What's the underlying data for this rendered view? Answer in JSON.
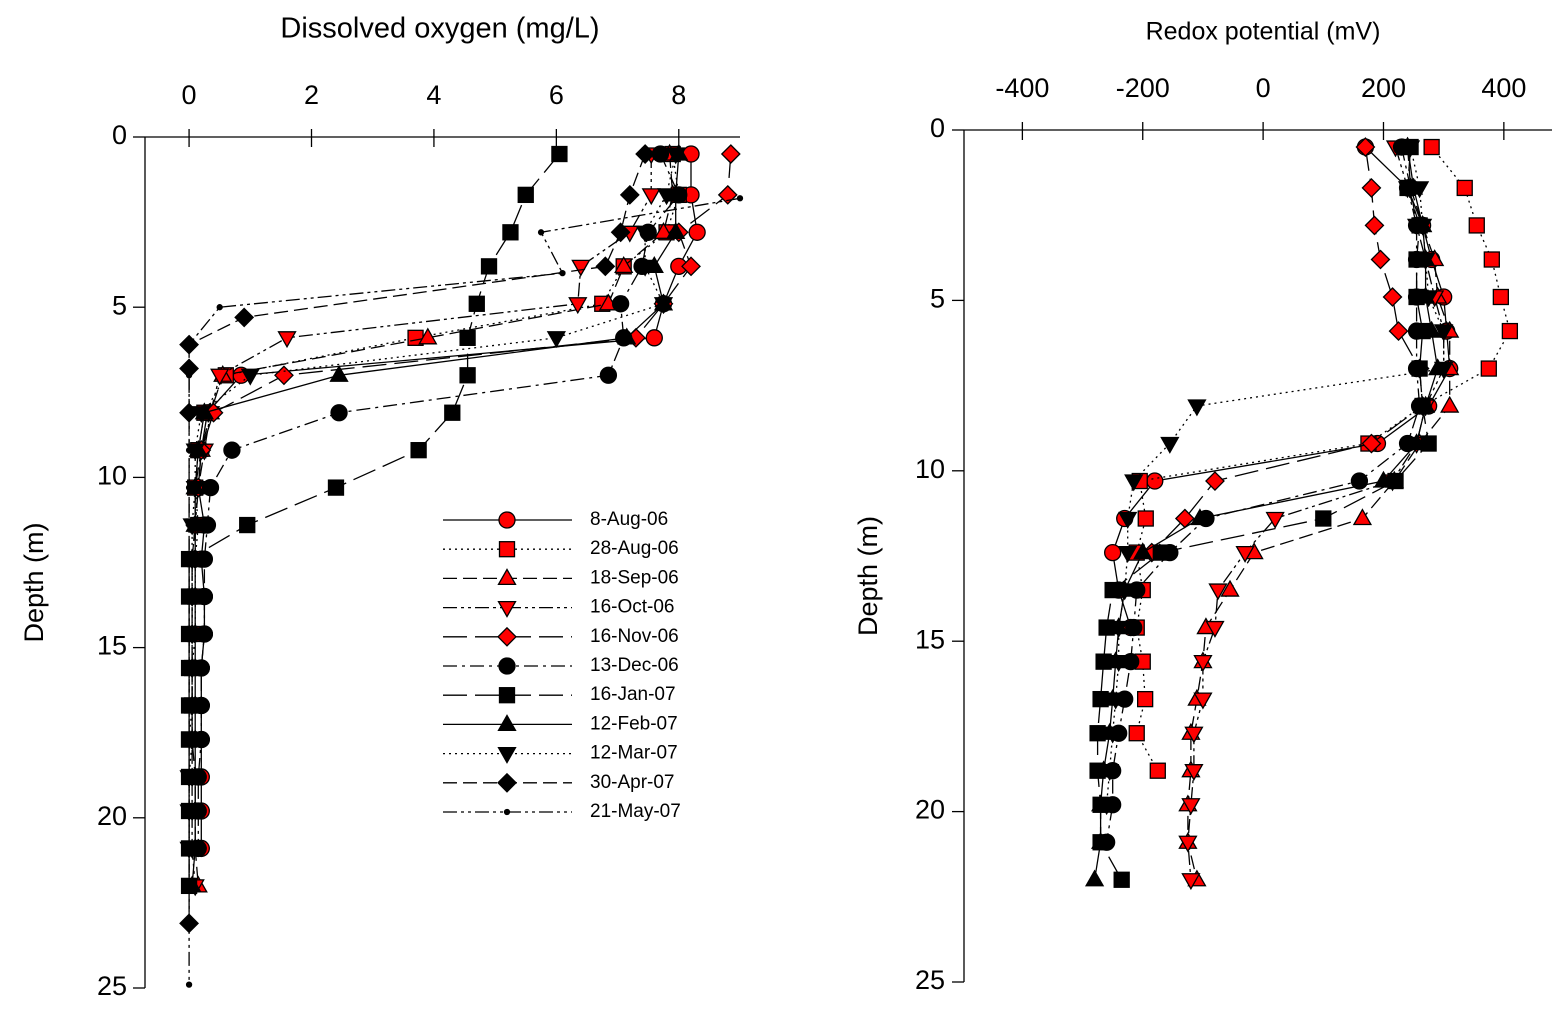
{
  "chart_data": [
    {
      "type": "line",
      "xlabel": "Dissolved oxygen (mg/L)",
      "ylabel": "Depth (m)",
      "xlim": [
        -0.72,
        9.0
      ],
      "xticks": [
        0,
        2,
        4,
        6,
        8
      ],
      "ylim": [
        0,
        25
      ],
      "yticks": [
        0,
        5,
        10,
        15,
        20,
        25
      ],
      "y_inverted": true,
      "legend": true,
      "y": [
        0.5,
        1.7,
        2.8,
        3.8,
        4.9,
        5.9,
        7.0,
        8.1,
        9.2,
        10.3,
        11.4,
        12.4,
        13.5,
        14.6,
        15.6,
        16.7,
        17.7,
        18.8,
        19.8,
        20.9,
        22.0
      ],
      "series": [
        {
          "name": "8-Aug-06",
          "color": "#ff0000",
          "marker": "circle",
          "dash": "solid",
          "x": [
            8.2,
            8.2,
            8.3,
            8.0,
            7.75,
            7.6,
            0.85,
            0.3,
            0.2,
            0.15,
            0.25,
            0.2,
            0.25,
            0.25,
            0.2,
            0.2,
            0.2,
            0.2,
            0.2,
            0.2,
            null
          ]
        },
        {
          "name": "28-Aug-06",
          "color": "#ff0000",
          "marker": "square",
          "dash": "dotted",
          "x": [
            7.9,
            8.0,
            7.8,
            7.1,
            6.75,
            3.7,
            0.6,
            0.25,
            0.15,
            0.1,
            0.15,
            0.1,
            0.1,
            0.1,
            0.05,
            0.05,
            0.0,
            null,
            null,
            null,
            null
          ]
        },
        {
          "name": "18-Sep-06",
          "color": "#ff0000",
          "marker": "triangle-up",
          "dash": "dashed",
          "x": [
            7.85,
            7.9,
            7.75,
            7.1,
            6.85,
            3.9,
            0.55,
            0.35,
            0.2,
            0.1,
            0.1,
            0.05,
            0.05,
            0.05,
            0.05,
            0.05,
            0.05,
            0.1,
            0.1,
            0.1,
            0.15
          ]
        },
        {
          "name": "16-Oct-06",
          "color": "#ff0000",
          "marker": "triangle-down",
          "dash": "dashdotdot",
          "x": [
            7.55,
            7.55,
            7.2,
            6.4,
            6.35,
            1.6,
            0.5,
            0.35,
            0.25,
            0.15,
            0.1,
            0.05,
            0.05,
            0.05,
            0.05,
            0.05,
            0.05,
            0.05,
            0.05,
            0.05,
            0.1
          ]
        },
        {
          "name": "16-Nov-06",
          "color": "#ff0000",
          "marker": "diamond",
          "dash": "longdash",
          "x": [
            8.85,
            8.8,
            8.0,
            8.2,
            7.75,
            7.3,
            1.55,
            0.4,
            0.2,
            0.15,
            0.1,
            0.1,
            null,
            null,
            null,
            null,
            null,
            null,
            null,
            null,
            null
          ]
        },
        {
          "name": "13-Dec-06",
          "color": "#000000",
          "marker": "circle",
          "dash": "dashdot",
          "x": [
            7.7,
            8.0,
            7.5,
            7.4,
            7.05,
            7.1,
            6.85,
            2.45,
            0.7,
            0.35,
            0.3,
            0.25,
            0.25,
            0.25,
            0.2,
            0.2,
            0.2,
            0.15,
            0.15,
            0.15,
            null
          ]
        },
        {
          "name": "16-Jan-07",
          "color": "#000000",
          "marker": "square",
          "dash": "longdash",
          "x": [
            6.05,
            5.5,
            5.25,
            4.9,
            4.7,
            4.55,
            4.55,
            4.3,
            3.75,
            2.4,
            0.95,
            0.0,
            0.0,
            0.0,
            0.0,
            0.0,
            0.0,
            0.0,
            0.0,
            0.0,
            0.0
          ]
        },
        {
          "name": "12-Feb-07",
          "color": "#000000",
          "marker": "triangle-up",
          "dash": "solid",
          "x": [
            8.0,
            7.95,
            7.95,
            7.6,
            7.75,
            7.15,
            2.45,
            0.25,
            0.15,
            0.1,
            0.1,
            0.1,
            0.1,
            0.1,
            0.1,
            0.1,
            0.1,
            0.1,
            0.1,
            0.1,
            0.05
          ]
        },
        {
          "name": "12-Mar-07",
          "color": "#000000",
          "marker": "triangle-down",
          "dash": "dotted",
          "x": [
            7.95,
            7.8,
            7.45,
            7.45,
            7.75,
            6.0,
            1.0,
            0.2,
            0.1,
            0.1,
            0.05,
            0.05,
            0.05,
            0.05,
            0.05,
            0.05,
            0.05,
            0.0,
            0.0,
            0.0,
            null
          ]
        },
        {
          "name": "30-Apr-07",
          "color": "#000000",
          "marker": "diamond",
          "dash": "dashed",
          "y": [
            0.5,
            1.7,
            2.8,
            3.8,
            5.3,
            6.1,
            6.8,
            8.1,
            23.1
          ],
          "x": [
            7.45,
            7.2,
            7.05,
            6.8,
            0.9,
            0.0,
            0.0,
            0.0,
            0.0
          ]
        },
        {
          "name": "21-May-07",
          "color": "#000000",
          "marker": "dot",
          "dash": "dashdotdot",
          "y": [
            1.8,
            2.8,
            4.0,
            5.0,
            6.1,
            7.0,
            8.1,
            9.2,
            10.3,
            11.4,
            12.4,
            13.5,
            14.6,
            15.6,
            16.7,
            17.7,
            18.8,
            19.8,
            20.9,
            22.0,
            23.1,
            24.9
          ],
          "x": [
            9.0,
            5.75,
            6.1,
            0.5,
            0.0,
            0.0,
            0.0,
            0.0,
            0.0,
            0.0,
            0.0,
            0.0,
            0.0,
            0.0,
            0.0,
            0.0,
            0.0,
            0.0,
            0.0,
            0.0,
            0.0,
            0.0
          ]
        }
      ]
    },
    {
      "type": "line",
      "xlabel": "Redox potential (mV)",
      "ylabel": "Depth (m)",
      "xlim": [
        -497,
        480
      ],
      "xticks": [
        -400,
        -200,
        0,
        200,
        400
      ],
      "ylim": [
        0,
        25
      ],
      "yticks": [
        0,
        5,
        10,
        15,
        20,
        25
      ],
      "y_inverted": true,
      "legend": false,
      "y": [
        0.5,
        1.7,
        2.8,
        3.8,
        4.9,
        5.9,
        7.0,
        8.1,
        9.2,
        10.3,
        11.4,
        12.4,
        13.5,
        14.6,
        15.6,
        16.7,
        17.7,
        18.8,
        19.8,
        20.9,
        22.0
      ],
      "series": [
        {
          "color": "#ff0000",
          "marker": "circle",
          "dash": "solid",
          "x": [
            170,
            240,
            265,
            280,
            300,
            305,
            310,
            275,
            190,
            -180,
            -230,
            -250,
            -240,
            -220,
            null,
            null,
            null,
            null,
            null,
            null,
            null
          ]
        },
        {
          "color": "#ff0000",
          "marker": "square",
          "dash": "dotted",
          "x": [
            280,
            335,
            355,
            380,
            395,
            410,
            375,
            265,
            175,
            -205,
            -195,
            -210,
            -200,
            -210,
            -200,
            -196,
            -210,
            -175,
            null,
            null,
            null
          ]
        },
        {
          "color": "#ff0000",
          "marker": "triangle-up",
          "dash": "dashed",
          "x": [
            240,
            245,
            265,
            285,
            290,
            310,
            310,
            310,
            260,
            218,
            165,
            -15,
            -55,
            -95,
            -100,
            -110,
            -120,
            -120,
            -125,
            -125,
            -110
          ]
        },
        {
          "color": "#ff0000",
          "marker": "triangle-down",
          "dash": "dashdotdot",
          "x": [
            220,
            240,
            255,
            270,
            285,
            300,
            300,
            270,
            255,
            215,
            20,
            -30,
            -75,
            -80,
            -100,
            -100,
            -115,
            -115,
            -120,
            -125,
            -120
          ]
        },
        {
          "color": "#ff0000",
          "marker": "diamond",
          "dash": "longdash",
          "x": [
            170,
            180,
            185,
            195,
            215,
            225,
            260,
            265,
            180,
            -80,
            -130,
            -185,
            null,
            null,
            null,
            null,
            null,
            null,
            null,
            null,
            null
          ]
        },
        {
          "color": "#000000",
          "marker": "circle",
          "dash": "dashdot",
          "x": [
            230,
            245,
            255,
            255,
            255,
            255,
            255,
            260,
            240,
            160,
            -95,
            -155,
            -210,
            -215,
            -220,
            -230,
            -240,
            -250,
            -250,
            -260,
            null
          ]
        },
        {
          "color": "#000000",
          "marker": "square",
          "dash": "longdash",
          "x": [
            245,
            240,
            260,
            255,
            255,
            265,
            260,
            265,
            275,
            220,
            100,
            -170,
            -250,
            -260,
            -265,
            -270,
            -275,
            -275,
            -270,
            -270,
            -235
          ]
        },
        {
          "color": "#000000",
          "marker": "triangle-up",
          "dash": "solid",
          "x": [
            240,
            250,
            265,
            270,
            270,
            280,
            290,
            270,
            255,
            200,
            -105,
            -200,
            -230,
            -240,
            -245,
            -250,
            -255,
            -265,
            -270,
            -270,
            -280
          ]
        },
        {
          "color": "#000000",
          "marker": "triangle-down",
          "dash": "dotted",
          "x": [
            245,
            260,
            265,
            270,
            275,
            300,
            300,
            -110,
            -155,
            -215,
            -225,
            -225,
            -230,
            -240,
            -240,
            -245,
            -250,
            -255,
            -260,
            null,
            null
          ]
        }
      ]
    }
  ]
}
